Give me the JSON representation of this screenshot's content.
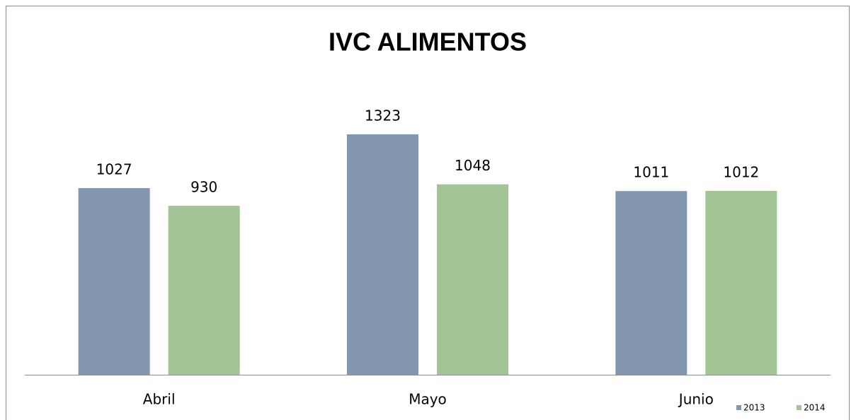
{
  "chart_data": {
    "type": "bar",
    "title": "IVC ALIMENTOS",
    "categories": [
      "Abril",
      "Mayo",
      "Junio"
    ],
    "series": [
      {
        "name": "2013",
        "color": "#8497b0",
        "values": [
          1027,
          1323,
          1011
        ]
      },
      {
        "name": "2014",
        "color": "#a3c495",
        "values": [
          930,
          1048,
          1012
        ]
      }
    ],
    "legend": "bottom-right"
  }
}
